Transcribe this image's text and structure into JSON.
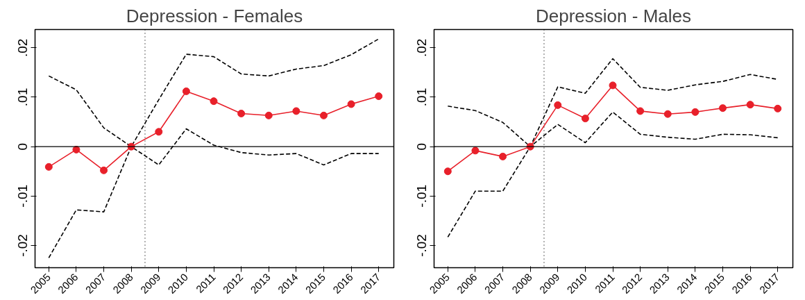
{
  "chart_data": [
    {
      "type": "line",
      "title": "Depression - Females",
      "x": [
        2005,
        2006,
        2007,
        2008,
        2009,
        2010,
        2011,
        2012,
        2013,
        2014,
        2015,
        2016,
        2017
      ],
      "xlim": [
        2004.5,
        2017.55
      ],
      "xticks": [
        2005,
        2006,
        2007,
        2008,
        2009,
        2010,
        2011,
        2012,
        2013,
        2014,
        2015,
        2016,
        2017
      ],
      "ylim": [
        -0.0245,
        0.0237
      ],
      "yticks": [
        {
          "value": 0.02,
          "label": ".02"
        },
        {
          "value": 0.01,
          "label": ".01"
        },
        0,
        {
          "value": -0.01,
          "label": "-.01"
        },
        {
          "value": -0.02,
          "label": "-.02"
        }
      ],
      "grid": false,
      "series": [
        {
          "color": "#000000",
          "line_style": "dashed",
          "marker": "none",
          "values": [
            0.0143,
            0.0115,
            0.0038,
            0,
            0.0095,
            0.0187,
            0.0182,
            0.0147,
            0.0143,
            0.0157,
            0.0164,
            0.0186,
            0.0218
          ]
        },
        {
          "color": "#000000",
          "line_style": "dashed",
          "marker": "none",
          "values": [
            -0.0225,
            -0.0128,
            -0.0132,
            0,
            -0.0037,
            0.0036,
            0.0003,
            -0.0012,
            -0.0017,
            -0.0014,
            -0.0037,
            -0.0014,
            -0.0014
          ]
        },
        {
          "color": "#e8202a",
          "line_style": "solid",
          "marker": "circle",
          "values": [
            -0.0041,
            -0.0006,
            -0.0048,
            0,
            0.003,
            0.0112,
            0.0092,
            0.0067,
            0.0063,
            0.0072,
            0.0063,
            0.0086,
            0.0102
          ]
        }
      ],
      "ref_lines": [
        {
          "axis": "x",
          "value": 2008.5,
          "line_style": "dotted",
          "color": "#000000"
        },
        {
          "axis": "y",
          "value": 0,
          "line_style": "solid",
          "color": "#000000"
        }
      ]
    },
    {
      "type": "line",
      "title": "Depression - Males",
      "x": [
        2005,
        2006,
        2007,
        2008,
        2009,
        2010,
        2011,
        2012,
        2013,
        2014,
        2015,
        2016,
        2017
      ],
      "xlim": [
        2004.5,
        2017.55
      ],
      "xticks": [
        2005,
        2006,
        2007,
        2008,
        2009,
        2010,
        2011,
        2012,
        2013,
        2014,
        2015,
        2016,
        2017
      ],
      "ylim": [
        -0.0245,
        0.0237
      ],
      "yticks": [
        {
          "value": 0.02,
          "label": ".02"
        },
        {
          "value": 0.01,
          "label": ".01"
        },
        0,
        {
          "value": -0.01,
          "label": "-.01"
        },
        {
          "value": -0.02,
          "label": "-.02"
        }
      ],
      "grid": false,
      "series": [
        {
          "color": "#000000",
          "line_style": "dashed",
          "marker": "none",
          "values": [
            0.0082,
            0.0073,
            0.0049,
            0,
            0.0121,
            0.0108,
            0.0178,
            0.012,
            0.0114,
            0.0125,
            0.0132,
            0.0146,
            0.0136
          ]
        },
        {
          "color": "#000000",
          "line_style": "dashed",
          "marker": "none",
          "values": [
            -0.0183,
            -0.009,
            -0.009,
            0,
            0.0045,
            0.0008,
            0.007,
            0.0025,
            0.0019,
            0.0015,
            0.0025,
            0.0024,
            0.0018
          ]
        },
        {
          "color": "#e8202a",
          "line_style": "solid",
          "marker": "circle",
          "values": [
            -0.005,
            -0.0008,
            -0.002,
            0,
            0.0084,
            0.0057,
            0.0124,
            0.0072,
            0.0066,
            0.007,
            0.0078,
            0.0085,
            0.0077
          ]
        }
      ],
      "ref_lines": [
        {
          "axis": "x",
          "value": 2008.5,
          "line_style": "dotted",
          "color": "#000000"
        },
        {
          "axis": "y",
          "value": 0,
          "line_style": "solid",
          "color": "#000000"
        }
      ]
    }
  ]
}
